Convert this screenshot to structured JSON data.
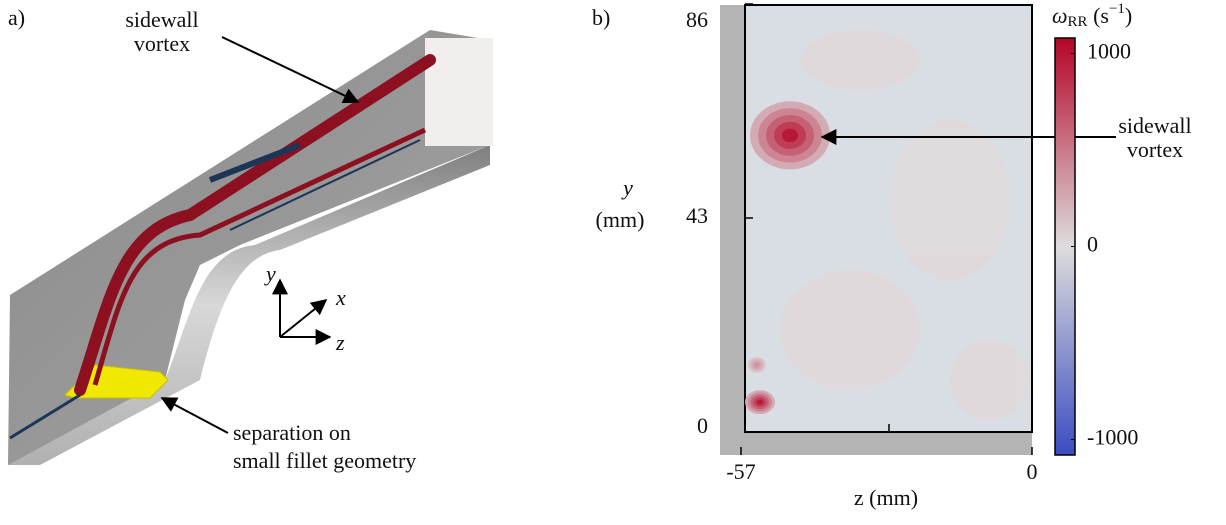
{
  "figure_a": {
    "panel_label": "a)",
    "annotations": [
      {
        "lines": [
          "sidewall",
          "vortex"
        ]
      },
      {
        "lines": [
          "separation on",
          "small fillet geometry"
        ]
      }
    ],
    "axes_triad": [
      "y",
      "x",
      "z"
    ]
  },
  "chart_data": {
    "type": "heatmap",
    "panel_label": "b)",
    "x_label": "z (mm)",
    "y_label": [
      "y",
      "(mm)"
    ],
    "xlim": [
      -57,
      0
    ],
    "xticks": [
      -57,
      0
    ],
    "ylim": [
      0,
      86
    ],
    "yticks": [
      0,
      43,
      86
    ],
    "colorbar_label": [
      "ω",
      "RR",
      " (s",
      "−1",
      ")"
    ],
    "clim": [
      -1080,
      1080
    ],
    "cticks": [
      -1000,
      0,
      1000
    ],
    "colormap": [
      "#3b4cc0",
      "#dddddd",
      "#b40426"
    ],
    "hotspots": {
      "z": [
        -47.4,
        -53.3,
        -53.9
      ],
      "y": [
        59.6,
        6,
        13.5
      ],
      "values": [
        1000,
        1000,
        400
      ]
    },
    "annotation": [
      "sidewall",
      "vortex"
    ]
  }
}
